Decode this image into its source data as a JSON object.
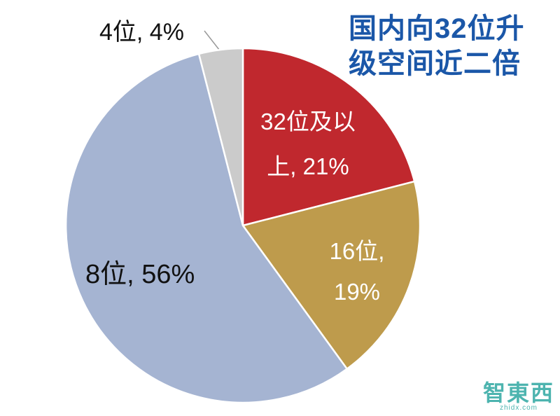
{
  "title": {
    "text": "国内向32位升级空间近二倍",
    "line1": "国内向32位升",
    "line2": "级空间近二倍",
    "color": "#1B57A8"
  },
  "chart_data": {
    "type": "pie",
    "title": "国内向32位升级空间近二倍",
    "direction": "clockwise",
    "start_angle_deg": 0,
    "legend": "none",
    "slices": [
      {
        "label": "32位及以上",
        "value": 21,
        "pct": "21%",
        "color": "#C0282E",
        "slug": "32bit-plus",
        "label_line1": "32位及以",
        "label_line2": "上, 21%",
        "label_color": "#FFFFFF"
      },
      {
        "label": "16位",
        "value": 19,
        "pct": "19%",
        "color": "#BE9B4C",
        "slug": "16bit",
        "label_line1": "16位,",
        "label_line2": "19%",
        "label_color": "#FFFFFF"
      },
      {
        "label": "8位",
        "value": 56,
        "pct": "56%",
        "color": "#A5B4D2",
        "slug": "8bit",
        "label_line1": "8位, 56%",
        "label_color": "#000000"
      },
      {
        "label": "4位",
        "value": 4,
        "pct": "4%",
        "color": "#CBCBCB",
        "slug": "4bit",
        "label_line1": "4位, 4%",
        "label_color": "#000000"
      }
    ]
  },
  "watermark": {
    "text": "智東西",
    "subtext": "zhidx.com",
    "color": "#2EA8A2"
  }
}
